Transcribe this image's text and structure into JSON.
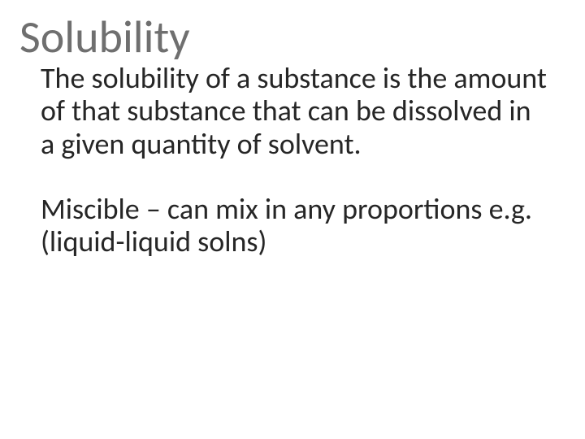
{
  "slide": {
    "title": "Solubility",
    "title_color": "#6f6f6f",
    "body_color": "#262626",
    "background": "#ffffff",
    "paragraphs": [
      "The solubility of a substance is the amount of that substance that can be dissolved in a given quantity of solvent.",
      "Miscible – can mix in any proportions e.g. (liquid-liquid solns)"
    ],
    "title_fontsize": 56,
    "body_fontsize": 36
  }
}
